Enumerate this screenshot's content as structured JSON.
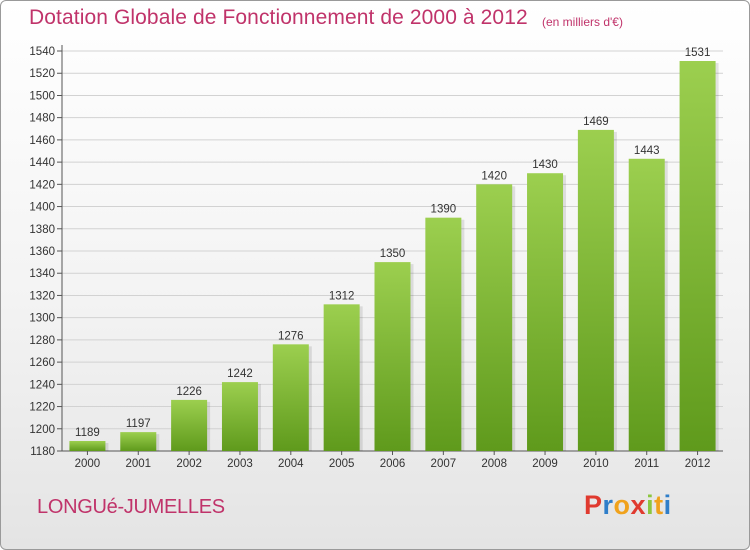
{
  "header": {
    "title": "Dotation Globale de Fonctionnement de 2000 à 2012",
    "unit": "(en milliers d'€)"
  },
  "footer": {
    "commune": "LONGUé-JUMELLES",
    "logo_letters": [
      {
        "ch": "P",
        "color": "#e03a2f"
      },
      {
        "ch": "r",
        "color": "#2f7ec9"
      },
      {
        "ch": "o",
        "color": "#f0a21c"
      },
      {
        "ch": "x",
        "color": "#e03a2f"
      },
      {
        "ch": "i",
        "color": "#8cc63f"
      },
      {
        "ch": "t",
        "color": "#f0a21c"
      },
      {
        "ch": "i",
        "color": "#2f7ec9"
      }
    ]
  },
  "colors": {
    "bar_light": "#9ccf4f",
    "bar_dark": "#5f9a1c",
    "accent": "#c0336a"
  },
  "chart_data": {
    "type": "bar",
    "categories": [
      "2000",
      "2001",
      "2002",
      "2003",
      "2004",
      "2005",
      "2006",
      "2007",
      "2008",
      "2009",
      "2010",
      "2011",
      "2012"
    ],
    "values": [
      1189,
      1197,
      1226,
      1242,
      1276,
      1312,
      1350,
      1390,
      1420,
      1430,
      1469,
      1443,
      1531
    ],
    "ylim": [
      1180,
      1540
    ],
    "ytick_step": 20,
    "grid": true
  }
}
